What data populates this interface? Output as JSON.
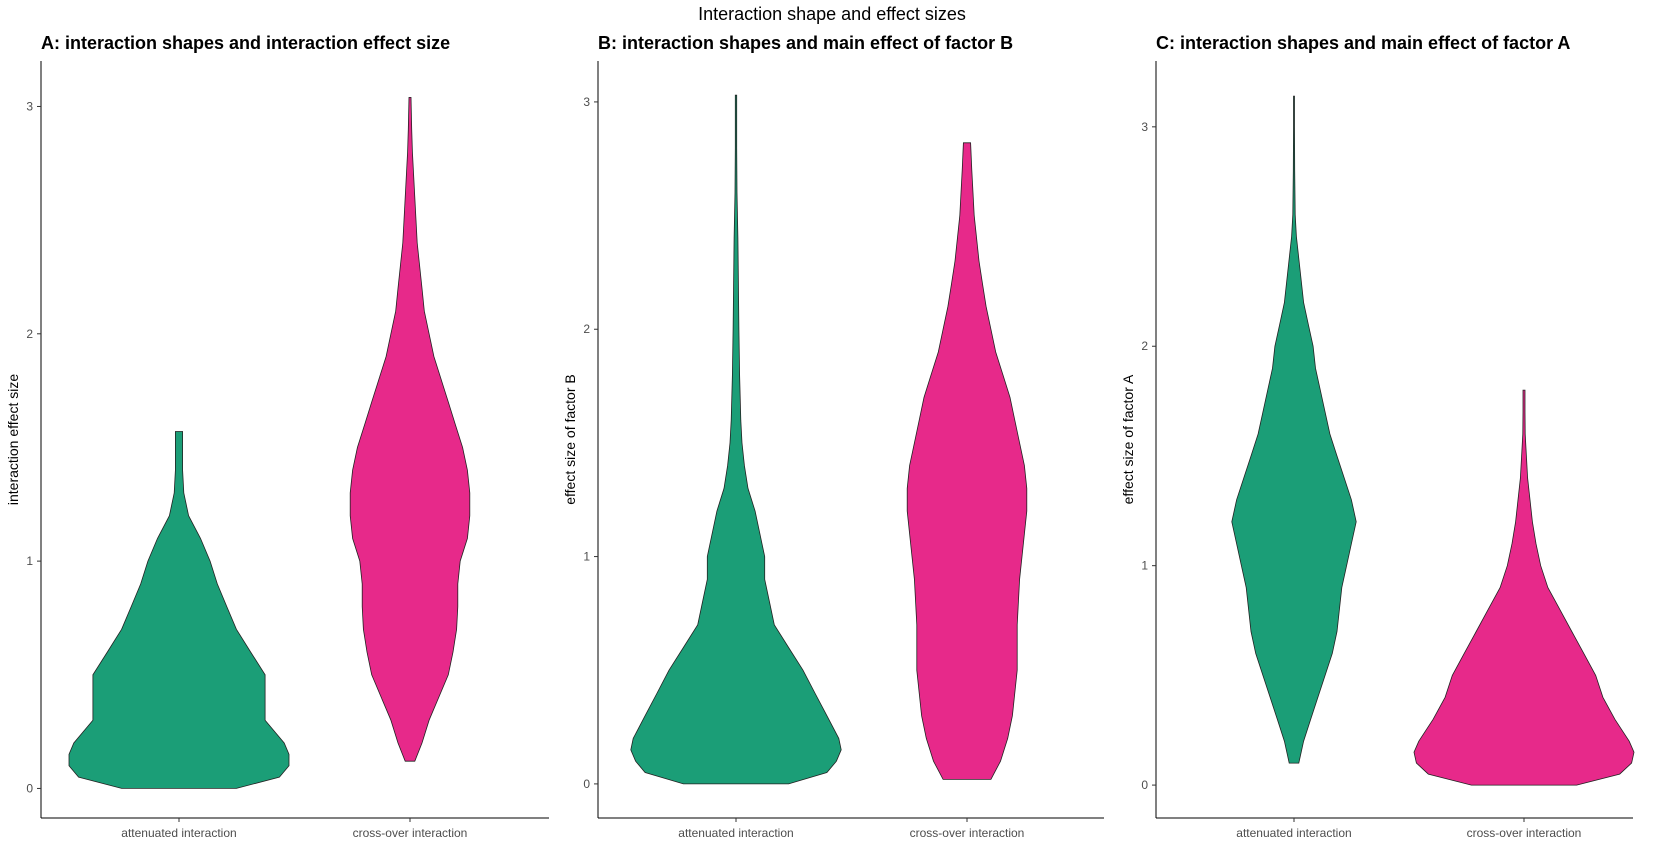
{
  "figure_title": "Interaction shape and effect sizes",
  "colors": {
    "attenuated": "#1B9E77",
    "crossover": "#E7298A",
    "outline": "#222222"
  },
  "chart_data": [
    {
      "type": "violin",
      "title": "A: interaction shapes and interaction effect size",
      "xlabel": "",
      "ylabel": "interaction effect size",
      "categories": [
        "attenuated interaction",
        "cross-over interaction"
      ],
      "yticks": [
        0,
        1,
        2,
        3
      ],
      "ylim": [
        -0.13,
        3.2
      ],
      "grid": false,
      "legend": "none",
      "series": [
        {
          "category": "attenuated interaction",
          "min": 0,
          "max": 1.57,
          "density": [
            [
              0,
              0.24
            ],
            [
              0.05,
              0.42
            ],
            [
              0.1,
              0.46
            ],
            [
              0.15,
              0.46
            ],
            [
              0.2,
              0.44
            ],
            [
              0.3,
              0.36
            ],
            [
              0.4,
              0.36
            ],
            [
              0.5,
              0.36
            ],
            [
              0.6,
              0.3
            ],
            [
              0.7,
              0.24
            ],
            [
              0.8,
              0.2
            ],
            [
              0.9,
              0.16
            ],
            [
              1.0,
              0.13
            ],
            [
              1.1,
              0.09
            ],
            [
              1.2,
              0.04
            ],
            [
              1.3,
              0.02
            ],
            [
              1.4,
              0.015
            ],
            [
              1.5,
              0.015
            ],
            [
              1.57,
              0.015
            ]
          ]
        },
        {
          "category": "cross-over interaction",
          "min": 0.12,
          "max": 3.04,
          "density": [
            [
              0.12,
              0.02
            ],
            [
              0.2,
              0.05
            ],
            [
              0.3,
              0.08
            ],
            [
              0.4,
              0.12
            ],
            [
              0.5,
              0.16
            ],
            [
              0.6,
              0.18
            ],
            [
              0.7,
              0.195
            ],
            [
              0.8,
              0.2
            ],
            [
              0.9,
              0.2
            ],
            [
              1.0,
              0.21
            ],
            [
              1.1,
              0.24
            ],
            [
              1.2,
              0.25
            ],
            [
              1.3,
              0.25
            ],
            [
              1.4,
              0.24
            ],
            [
              1.5,
              0.22
            ],
            [
              1.6,
              0.19
            ],
            [
              1.7,
              0.16
            ],
            [
              1.8,
              0.13
            ],
            [
              1.9,
              0.1
            ],
            [
              2.0,
              0.08
            ],
            [
              2.1,
              0.06
            ],
            [
              2.2,
              0.05
            ],
            [
              2.3,
              0.04
            ],
            [
              2.4,
              0.03
            ],
            [
              2.5,
              0.025
            ],
            [
              2.6,
              0.02
            ],
            [
              2.7,
              0.015
            ],
            [
              2.8,
              0.01
            ],
            [
              2.9,
              0.007
            ],
            [
              3.04,
              0.004
            ]
          ]
        }
      ]
    },
    {
      "type": "violin",
      "title": "B: interaction shapes and main effect of factor B",
      "xlabel": "",
      "ylabel": "effect size of factor B",
      "categories": [
        "attenuated interaction",
        "cross-over interaction"
      ],
      "yticks": [
        0,
        1,
        2,
        3
      ],
      "ylim": [
        -0.15,
        3.18
      ],
      "grid": false,
      "legend": "none",
      "series": [
        {
          "category": "attenuated interaction",
          "min": 0,
          "max": 3.03,
          "density": [
            [
              0,
              0.22
            ],
            [
              0.05,
              0.38
            ],
            [
              0.1,
              0.42
            ],
            [
              0.15,
              0.44
            ],
            [
              0.2,
              0.43
            ],
            [
              0.3,
              0.38
            ],
            [
              0.4,
              0.33
            ],
            [
              0.5,
              0.28
            ],
            [
              0.6,
              0.22
            ],
            [
              0.7,
              0.16
            ],
            [
              0.8,
              0.14
            ],
            [
              0.9,
              0.12
            ],
            [
              1.0,
              0.12
            ],
            [
              1.1,
              0.1
            ],
            [
              1.2,
              0.08
            ],
            [
              1.3,
              0.05
            ],
            [
              1.4,
              0.035
            ],
            [
              1.5,
              0.025
            ],
            [
              1.6,
              0.02
            ],
            [
              1.8,
              0.015
            ],
            [
              2.0,
              0.012
            ],
            [
              2.2,
              0.01
            ],
            [
              2.4,
              0.008
            ],
            [
              2.6,
              0.004
            ],
            [
              2.8,
              0.003
            ],
            [
              3.03,
              0.003
            ]
          ]
        },
        {
          "category": "cross-over interaction",
          "min": 0.02,
          "max": 2.82,
          "density": [
            [
              0.02,
              0.1
            ],
            [
              0.1,
              0.14
            ],
            [
              0.2,
              0.17
            ],
            [
              0.3,
              0.19
            ],
            [
              0.4,
              0.2
            ],
            [
              0.5,
              0.21
            ],
            [
              0.6,
              0.21
            ],
            [
              0.7,
              0.21
            ],
            [
              0.8,
              0.215
            ],
            [
              0.9,
              0.22
            ],
            [
              1.0,
              0.23
            ],
            [
              1.1,
              0.24
            ],
            [
              1.2,
              0.25
            ],
            [
              1.3,
              0.25
            ],
            [
              1.4,
              0.24
            ],
            [
              1.5,
              0.22
            ],
            [
              1.6,
              0.2
            ],
            [
              1.7,
              0.18
            ],
            [
              1.8,
              0.15
            ],
            [
              1.9,
              0.12
            ],
            [
              2.0,
              0.1
            ],
            [
              2.1,
              0.08
            ],
            [
              2.2,
              0.065
            ],
            [
              2.3,
              0.05
            ],
            [
              2.4,
              0.04
            ],
            [
              2.5,
              0.03
            ],
            [
              2.6,
              0.025
            ],
            [
              2.7,
              0.02
            ],
            [
              2.82,
              0.015
            ]
          ]
        }
      ]
    },
    {
      "type": "violin",
      "title": "C: interaction shapes and main effect of factor A",
      "xlabel": "",
      "ylabel": "effect size of factor A",
      "categories": [
        "attenuated interaction",
        "cross-over interaction"
      ],
      "yticks": [
        0,
        1,
        2,
        3
      ],
      "ylim": [
        -0.15,
        3.3
      ],
      "grid": false,
      "legend": "none",
      "series": [
        {
          "category": "attenuated interaction",
          "min": 0.1,
          "max": 3.14,
          "density": [
            [
              0.1,
              0.02
            ],
            [
              0.2,
              0.04
            ],
            [
              0.3,
              0.07
            ],
            [
              0.4,
              0.1
            ],
            [
              0.5,
              0.13
            ],
            [
              0.6,
              0.16
            ],
            [
              0.7,
              0.18
            ],
            [
              0.8,
              0.19
            ],
            [
              0.9,
              0.2
            ],
            [
              1.0,
              0.22
            ],
            [
              1.1,
              0.24
            ],
            [
              1.2,
              0.26
            ],
            [
              1.3,
              0.24
            ],
            [
              1.4,
              0.21
            ],
            [
              1.5,
              0.18
            ],
            [
              1.6,
              0.15
            ],
            [
              1.7,
              0.13
            ],
            [
              1.8,
              0.11
            ],
            [
              1.9,
              0.09
            ],
            [
              2.0,
              0.08
            ],
            [
              2.1,
              0.06
            ],
            [
              2.2,
              0.04
            ],
            [
              2.3,
              0.03
            ],
            [
              2.4,
              0.02
            ],
            [
              2.5,
              0.01
            ],
            [
              2.6,
              0.005
            ],
            [
              2.8,
              0.003
            ],
            [
              3.0,
              0.002
            ],
            [
              3.14,
              0.002
            ]
          ]
        },
        {
          "category": "cross-over interaction",
          "min": 0,
          "max": 1.8,
          "density": [
            [
              0,
              0.22
            ],
            [
              0.05,
              0.4
            ],
            [
              0.1,
              0.45
            ],
            [
              0.15,
              0.46
            ],
            [
              0.2,
              0.44
            ],
            [
              0.3,
              0.38
            ],
            [
              0.4,
              0.33
            ],
            [
              0.5,
              0.3
            ],
            [
              0.6,
              0.25
            ],
            [
              0.7,
              0.2
            ],
            [
              0.8,
              0.15
            ],
            [
              0.9,
              0.1
            ],
            [
              1.0,
              0.07
            ],
            [
              1.1,
              0.05
            ],
            [
              1.2,
              0.035
            ],
            [
              1.3,
              0.025
            ],
            [
              1.4,
              0.015
            ],
            [
              1.5,
              0.01
            ],
            [
              1.6,
              0.005
            ],
            [
              1.7,
              0.004
            ],
            [
              1.8,
              0.004
            ]
          ]
        }
      ]
    }
  ]
}
